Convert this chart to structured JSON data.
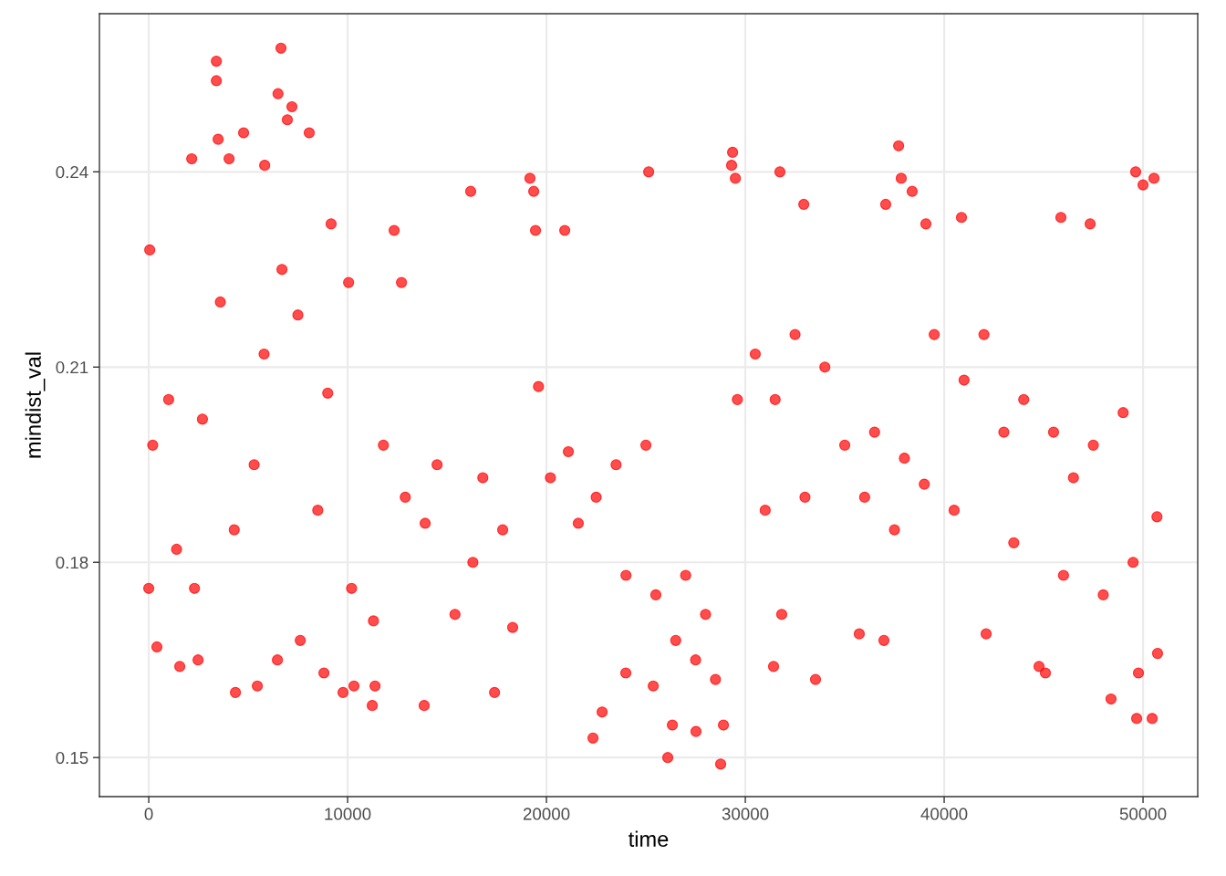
{
  "chart_data": {
    "type": "scatter",
    "xlabel": "time",
    "ylabel": "mindist_val",
    "xlim": [
      -2480,
      52750
    ],
    "ylim": [
      0.144,
      0.2643
    ],
    "xticks": [
      0,
      10000,
      20000,
      30000,
      40000,
      50000
    ],
    "yticks": [
      0.15,
      0.18,
      0.21,
      0.24
    ],
    "grid": true,
    "marker": "circle",
    "series": [
      {
        "color": "#ff0000",
        "x": [
          3400,
          3400,
          6650,
          6500,
          7200,
          6970,
          8070,
          4770,
          3490,
          2160,
          4040,
          5830,
          12340,
          9170,
          50,
          10050,
          12710,
          29360,
          29310,
          29500,
          25140,
          31740,
          19170,
          19360,
          16190,
          19450,
          20920,
          32940,
          37710,
          37840,
          38390,
          37060,
          49630,
          50550,
          50000,
          45870,
          47340,
          40870,
          39080,
          0,
          410,
          1560,
          2480,
          4360,
          5460,
          6470,
          7620,
          8810,
          9770,
          10320,
          11240,
          11380,
          13850,
          17390,
          22340,
          22800,
          23990,
          25370,
          26100,
          26330,
          27520,
          28760,
          28900,
          31420,
          31830,
          33530,
          35730,
          36970,
          42110,
          44770,
          45090,
          48390,
          49680,
          49770,
          50460,
          50730,
          200,
          1000,
          1400,
          2300,
          2700,
          3600,
          4300,
          5300,
          5800,
          6700,
          7500,
          8500,
          9000,
          10200,
          11300,
          11800,
          12900,
          13900,
          14500,
          15400,
          16300,
          16800,
          17800,
          18300,
          19600,
          20200,
          21100,
          21600,
          22500,
          23500,
          24000,
          25000,
          25500,
          26500,
          27000,
          27500,
          28000,
          28500,
          29600,
          30500,
          31000,
          31500,
          32500,
          33000,
          34000,
          35000,
          36000,
          36500,
          37500,
          38000,
          39000,
          39500,
          40500,
          41000,
          42000,
          43000,
          43500,
          44000,
          45500,
          46000,
          46500,
          47500,
          48000,
          49000,
          49500,
          50700
        ],
        "values": [
          0.257,
          0.254,
          0.259,
          0.252,
          0.25,
          0.248,
          0.246,
          0.246,
          0.245,
          0.242,
          0.242,
          0.241,
          0.231,
          0.232,
          0.228,
          0.223,
          0.223,
          0.243,
          0.241,
          0.239,
          0.24,
          0.24,
          0.239,
          0.237,
          0.237,
          0.231,
          0.231,
          0.235,
          0.244,
          0.239,
          0.237,
          0.235,
          0.24,
          0.239,
          0.238,
          0.233,
          0.232,
          0.233,
          0.232,
          0.176,
          0.167,
          0.164,
          0.165,
          0.16,
          0.161,
          0.165,
          0.168,
          0.163,
          0.16,
          0.161,
          0.158,
          0.161,
          0.158,
          0.16,
          0.153,
          0.157,
          0.163,
          0.161,
          0.15,
          0.155,
          0.154,
          0.149,
          0.155,
          0.164,
          0.172,
          0.162,
          0.169,
          0.168,
          0.169,
          0.164,
          0.163,
          0.159,
          0.156,
          0.163,
          0.156,
          0.166,
          0.198,
          0.205,
          0.182,
          0.176,
          0.202,
          0.22,
          0.185,
          0.195,
          0.212,
          0.225,
          0.218,
          0.188,
          0.206,
          0.176,
          0.171,
          0.198,
          0.19,
          0.186,
          0.195,
          0.172,
          0.18,
          0.193,
          0.185,
          0.17,
          0.207,
          0.193,
          0.197,
          0.186,
          0.19,
          0.195,
          0.178,
          0.198,
          0.175,
          0.168,
          0.178,
          0.165,
          0.172,
          0.162,
          0.205,
          0.212,
          0.188,
          0.205,
          0.215,
          0.19,
          0.21,
          0.198,
          0.19,
          0.2,
          0.185,
          0.196,
          0.192,
          0.215,
          0.188,
          0.208,
          0.215,
          0.2,
          0.183,
          0.205,
          0.2,
          0.178,
          0.193,
          0.198,
          0.175,
          0.203,
          0.18,
          0.187
        ]
      }
    ]
  }
}
